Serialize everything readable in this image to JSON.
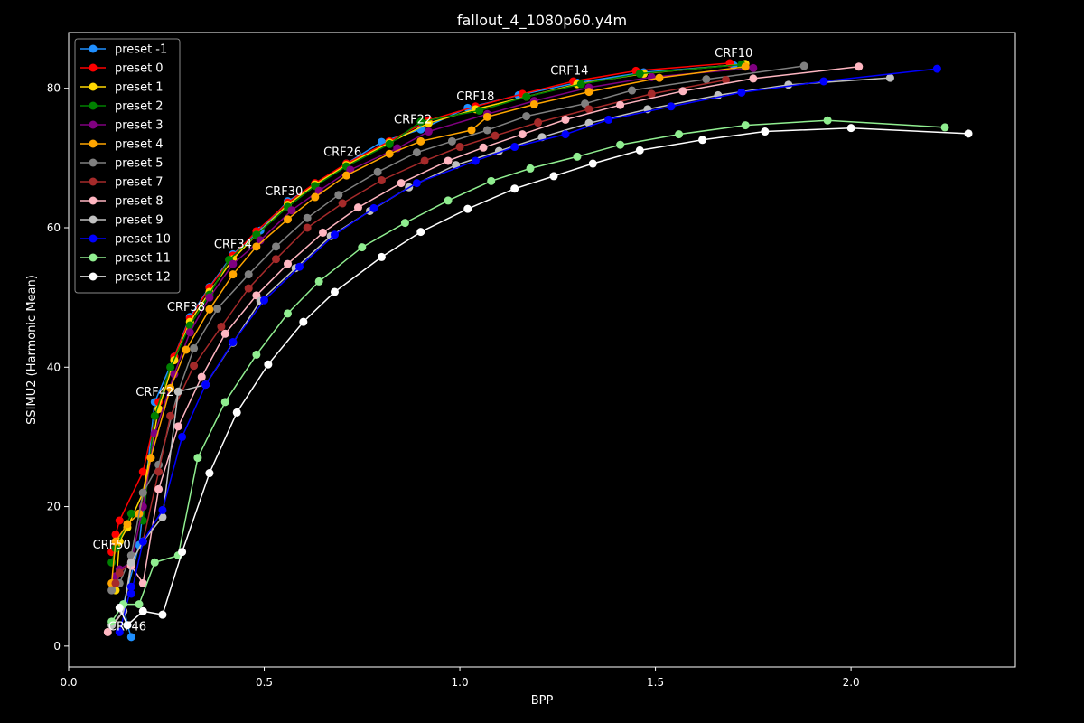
{
  "chart_data": {
    "type": "line",
    "title": "fallout_4_1080p60.y4m",
    "xlabel": "BPP",
    "ylabel": "SSIMU2 (Harmonic Mean)",
    "xlim": [
      0.0,
      2.42
    ],
    "ylim": [
      -3,
      88
    ],
    "xticks": [
      0.0,
      0.5,
      1.0,
      1.5,
      2.0
    ],
    "xtick_labels": [
      "0.0",
      "0.5",
      "1.0",
      "1.5",
      "2.0"
    ],
    "yticks": [
      0,
      20,
      40,
      60,
      80
    ],
    "ytick_labels": [
      "0",
      "20",
      "40",
      "60",
      "80"
    ],
    "grid": false,
    "legend_position": "top-left",
    "series": [
      {
        "name": "preset -1",
        "color": "#1f8fff",
        "x": [
          0.16,
          0.15,
          0.14,
          0.18,
          0.22,
          0.27,
          0.31,
          0.36,
          0.42,
          0.49,
          0.56,
          0.63,
          0.71,
          0.8,
          0.9,
          1.02,
          1.15,
          1.3,
          1.47,
          1.7
        ],
        "y": [
          1.3,
          3.0,
          6.0,
          14.5,
          35.0,
          41.5,
          47.2,
          51.5,
          56.2,
          59.6,
          63.8,
          66.2,
          69.2,
          72.3,
          74.1,
          77.2,
          79.0,
          80.8,
          82.3,
          83.3
        ]
      },
      {
        "name": "preset 0",
        "color": "#ff0000",
        "x": [
          0.11,
          0.12,
          0.13,
          0.19,
          0.23,
          0.27,
          0.31,
          0.36,
          0.42,
          0.48,
          0.56,
          0.63,
          0.71,
          0.82,
          0.92,
          1.04,
          1.16,
          1.29,
          1.45,
          1.69
        ],
        "y": [
          13.5,
          16.0,
          18.0,
          25.0,
          35.0,
          41.5,
          47.0,
          51.4,
          56.0,
          59.5,
          63.6,
          66.4,
          69.2,
          72.4,
          75.4,
          77.4,
          79.2,
          81.0,
          82.5,
          83.6
        ]
      },
      {
        "name": "preset 1",
        "color": "#ffd700",
        "x": [
          0.12,
          0.13,
          0.15,
          0.19,
          0.23,
          0.27,
          0.31,
          0.36,
          0.42,
          0.48,
          0.56,
          0.63,
          0.71,
          0.82,
          0.92,
          1.04,
          1.17,
          1.3,
          1.47,
          1.73
        ],
        "y": [
          8.0,
          15.0,
          17.0,
          22.0,
          34.0,
          41.0,
          46.5,
          50.8,
          55.5,
          59.0,
          63.3,
          66.2,
          69.0,
          72.2,
          75.0,
          77.0,
          78.8,
          80.6,
          82.1,
          83.5
        ]
      },
      {
        "name": "preset 2",
        "color": "#008000",
        "x": [
          0.11,
          0.12,
          0.16,
          0.19,
          0.22,
          0.26,
          0.31,
          0.36,
          0.41,
          0.48,
          0.56,
          0.63,
          0.71,
          0.82,
          0.9,
          1.05,
          1.17,
          1.31,
          1.46,
          1.72
        ],
        "y": [
          12.0,
          14.0,
          19.0,
          18.0,
          33.0,
          40.0,
          46.0,
          50.4,
          55.4,
          59.0,
          63.0,
          66.0,
          68.8,
          72.0,
          75.2,
          76.8,
          78.8,
          80.6,
          82.1,
          83.4
        ]
      },
      {
        "name": "preset 3",
        "color": "#800080",
        "x": [
          0.12,
          0.13,
          0.16,
          0.19,
          0.22,
          0.27,
          0.31,
          0.36,
          0.42,
          0.49,
          0.57,
          0.64,
          0.72,
          0.84,
          0.92,
          1.07,
          1.19,
          1.33,
          1.49,
          1.75
        ],
        "y": [
          10.0,
          11.0,
          12.0,
          20.0,
          30.5,
          39.0,
          45.0,
          50.0,
          54.8,
          58.2,
          62.5,
          65.3,
          68.3,
          71.4,
          73.8,
          76.3,
          78.2,
          80.1,
          81.6,
          82.9
        ]
      },
      {
        "name": "preset 4",
        "color": "#ffa500",
        "x": [
          0.11,
          0.12,
          0.15,
          0.18,
          0.21,
          0.26,
          0.3,
          0.36,
          0.42,
          0.48,
          0.56,
          0.63,
          0.71,
          0.82,
          0.9,
          1.03,
          1.07,
          1.19,
          1.33,
          1.51,
          1.73
        ],
        "y": [
          9.0,
          15.0,
          17.5,
          19.0,
          27.0,
          37.0,
          42.5,
          48.3,
          53.3,
          57.3,
          61.2,
          64.4,
          67.5,
          70.6,
          72.4,
          74.0,
          75.9,
          77.7,
          79.5,
          81.5,
          83.1
        ]
      },
      {
        "name": "preset 5",
        "color": "#808080",
        "x": [
          0.11,
          0.13,
          0.16,
          0.19,
          0.23,
          0.28,
          0.32,
          0.38,
          0.46,
          0.53,
          0.61,
          0.69,
          0.79,
          0.89,
          0.98,
          1.07,
          1.17,
          1.32,
          1.44,
          1.63,
          1.88
        ],
        "y": [
          8.0,
          9.0,
          13.0,
          22.0,
          26.0,
          36.5,
          42.7,
          48.4,
          53.3,
          57.3,
          61.4,
          64.7,
          68.0,
          70.8,
          72.4,
          74.0,
          76.0,
          77.8,
          79.7,
          81.3,
          83.2
        ]
      },
      {
        "name": "preset 7",
        "color": "#a52a2a",
        "x": [
          0.12,
          0.13,
          0.16,
          0.19,
          0.23,
          0.26,
          0.32,
          0.39,
          0.46,
          0.53,
          0.61,
          0.7,
          0.8,
          0.91,
          1.0,
          1.09,
          1.2,
          1.33,
          1.49,
          1.68
        ],
        "y": [
          9.0,
          10.5,
          12.0,
          15.0,
          25.0,
          33.0,
          40.2,
          45.8,
          51.3,
          55.5,
          60.0,
          63.5,
          66.8,
          69.6,
          71.6,
          73.2,
          75.1,
          77.0,
          79.2,
          81.2
        ]
      },
      {
        "name": "preset 8",
        "color": "#ffb6c1",
        "x": [
          0.1,
          0.14,
          0.16,
          0.19,
          0.23,
          0.28,
          0.34,
          0.4,
          0.48,
          0.56,
          0.65,
          0.74,
          0.85,
          0.97,
          1.06,
          1.16,
          1.27,
          1.41,
          1.57,
          1.75,
          2.02
        ],
        "y": [
          2.0,
          5.0,
          11.5,
          9.0,
          22.5,
          31.5,
          38.6,
          44.8,
          50.3,
          54.8,
          59.3,
          62.9,
          66.4,
          69.6,
          71.5,
          73.4,
          75.5,
          77.6,
          79.6,
          81.4,
          83.1
        ]
      },
      {
        "name": "preset 9",
        "color": "#c0c0c0",
        "x": [
          0.11,
          0.14,
          0.16,
          0.19,
          0.24,
          0.28,
          0.35,
          0.42,
          0.49,
          0.58,
          0.67,
          0.77,
          0.87,
          0.99,
          1.1,
          1.21,
          1.33,
          1.48,
          1.66,
          1.84,
          2.1
        ],
        "y": [
          3.0,
          5.0,
          12.0,
          15.0,
          18.5,
          36.5,
          37.5,
          43.5,
          49.5,
          54.2,
          58.8,
          62.4,
          65.8,
          69.0,
          71.0,
          73.0,
          75.0,
          77.0,
          79.0,
          80.5,
          81.5
        ]
      },
      {
        "name": "preset 10",
        "color": "#0000ff",
        "x": [
          0.13,
          0.16,
          0.16,
          0.19,
          0.24,
          0.29,
          0.35,
          0.42,
          0.5,
          0.59,
          0.68,
          0.78,
          0.89,
          1.04,
          1.14,
          1.27,
          1.38,
          1.54,
          1.72,
          1.93,
          2.22
        ],
        "y": [
          2.0,
          8.5,
          7.5,
          15.0,
          19.5,
          30.0,
          37.5,
          43.6,
          49.6,
          54.4,
          59.0,
          62.8,
          66.4,
          69.6,
          71.6,
          73.4,
          75.5,
          77.4,
          79.4,
          81.0,
          82.8
        ]
      },
      {
        "name": "preset 11",
        "color": "#90ee90",
        "x": [
          0.11,
          0.14,
          0.18,
          0.22,
          0.28,
          0.33,
          0.4,
          0.48,
          0.56,
          0.64,
          0.75,
          0.86,
          0.97,
          1.08,
          1.18,
          1.3,
          1.41,
          1.56,
          1.73,
          1.94,
          2.24
        ],
        "y": [
          3.5,
          6.0,
          6.0,
          12.0,
          13.0,
          27.0,
          35.0,
          41.8,
          47.7,
          52.3,
          57.2,
          60.7,
          63.9,
          66.7,
          68.5,
          70.2,
          71.9,
          73.4,
          74.7,
          75.4,
          74.4
        ]
      },
      {
        "name": "preset 12",
        "color": "#ffffff",
        "x": [
          0.13,
          0.15,
          0.19,
          0.24,
          0.29,
          0.36,
          0.43,
          0.51,
          0.6,
          0.68,
          0.8,
          0.9,
          1.02,
          1.14,
          1.24,
          1.34,
          1.46,
          1.62,
          1.78,
          2.0,
          2.3
        ],
        "y": [
          5.5,
          3.0,
          5.0,
          4.5,
          13.5,
          24.8,
          33.5,
          40.4,
          46.5,
          50.8,
          55.8,
          59.4,
          62.7,
          65.6,
          67.4,
          69.2,
          71.1,
          72.6,
          73.8,
          74.3,
          73.5
        ]
      }
    ],
    "annotations": [
      {
        "text": "CRF10",
        "x": 1.7,
        "y": 85.0
      },
      {
        "text": "CRF14",
        "x": 1.28,
        "y": 82.5
      },
      {
        "text": "CRF18",
        "x": 1.04,
        "y": 78.8
      },
      {
        "text": "CRF22",
        "x": 0.88,
        "y": 75.5
      },
      {
        "text": "CRF26",
        "x": 0.7,
        "y": 70.8
      },
      {
        "text": "CRF30",
        "x": 0.55,
        "y": 65.2
      },
      {
        "text": "CRF34",
        "x": 0.42,
        "y": 57.6
      },
      {
        "text": "CRF38",
        "x": 0.3,
        "y": 48.6
      },
      {
        "text": "CRF42",
        "x": 0.22,
        "y": 36.4
      },
      {
        "text": "CRF50",
        "x": 0.11,
        "y": 14.5
      },
      {
        "text": "CRF46",
        "x": 0.15,
        "y": 2.8
      }
    ]
  }
}
